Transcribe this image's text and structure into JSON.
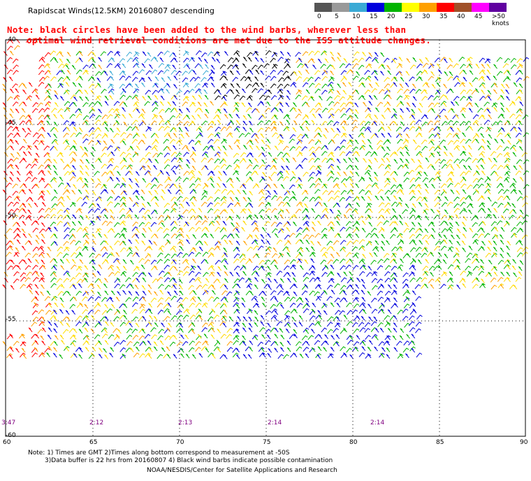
{
  "title": "Rapidscat Winds(12.5KM) 20160807 descending",
  "note_line1": "Note: black circles have been added to the wind barbs, wherever less than",
  "note_line2": "optimal wind retrieval conditions are met due to the ISS attitude changes.",
  "legend": {
    "labels": [
      "0",
      "5",
      "10",
      "15",
      "20",
      "25",
      "30",
      "35",
      "40",
      "45",
      ">50 knots"
    ],
    "colors": [
      "#555555",
      "#999999",
      "#3aaad5",
      "#0000dd",
      "#00b400",
      "#ffff00",
      "#ffa000",
      "#ff0000",
      "#a05028",
      "#ff00ff",
      "#6000a0"
    ]
  },
  "lat_labels": [
    "-40",
    "-45",
    "-50",
    "-55",
    "-60"
  ],
  "lon_labels": [
    "60",
    "65",
    "70",
    "75",
    "80",
    "85",
    "90"
  ],
  "time_labels": [
    "3:47",
    "2:12",
    "2:13",
    "2:14",
    "2:14"
  ],
  "footer": {
    "line1": "Note: 1) Times are GMT 2)Times along bottom correspond to measurement at -50S",
    "line2": "3)Data buffer is 22 hrs from 20160807 4) Black wind barbs indicate possible contamination",
    "line3": "NOAA/NESDIS/Center for Satellite Applications and Research"
  }
}
